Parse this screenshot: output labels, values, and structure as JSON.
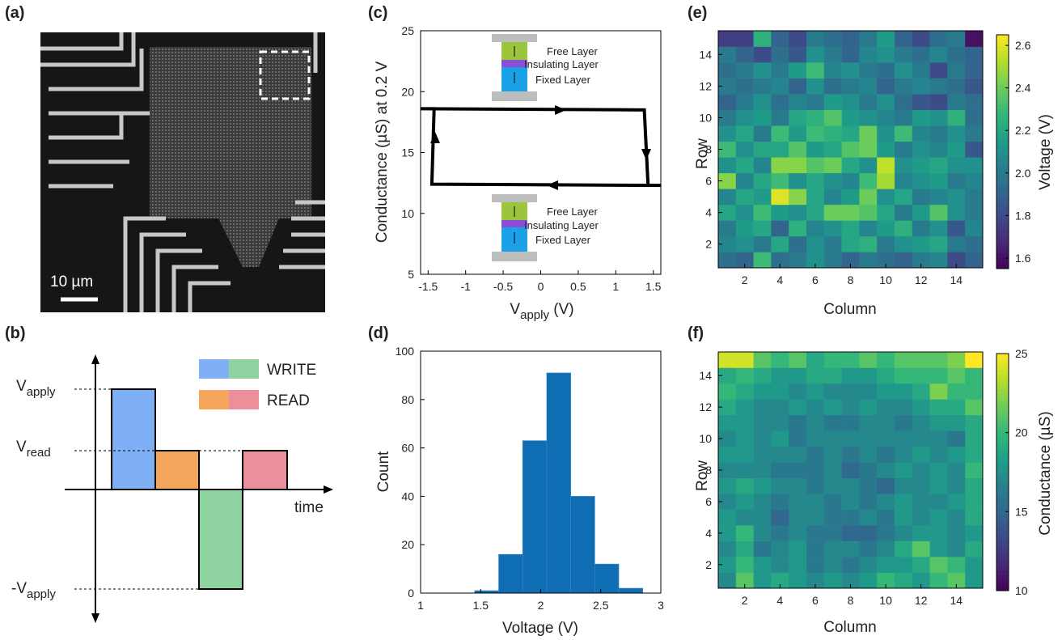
{
  "panel_labels": [
    "(a)",
    "(b)",
    "(c)",
    "(d)",
    "(e)",
    "(f)"
  ],
  "sem_image": {
    "scale_bar": "10 µm"
  },
  "pulse_diagram": {
    "v_apply": [
      "V",
      "apply"
    ],
    "v_read": [
      "V",
      "read"
    ],
    "neg_v_apply": [
      "-V",
      "apply"
    ],
    "x_label": "time",
    "legend": [
      "WRITE",
      "READ"
    ]
  },
  "chart_data": [
    {
      "type": "line",
      "x_label": [
        "V",
        "apply",
        " (V)"
      ],
      "y_label": "Conductance (µS) at 0.2 V",
      "x": [
        -1.6,
        1.38,
        1.43,
        1.6,
        -1.45,
        -1.42
      ],
      "values": [
        18.6,
        18.5,
        12.3,
        12.3,
        12.4,
        18.6
      ],
      "color": "#000000",
      "xlim": [
        -1.6,
        1.6
      ],
      "xticks": [
        -1.5,
        -1,
        -0.5,
        0,
        0.5,
        1,
        1.5
      ],
      "ylim": [
        5,
        25
      ],
      "yticks": [
        5,
        10,
        15,
        20,
        25
      ],
      "insets": [
        [
          "Free Layer",
          "Insulating Layer",
          "Fixed Layer"
        ],
        [
          "Free Layer",
          "Insulating Layer",
          "Fixed Layer"
        ]
      ]
    },
    {
      "type": "histogram",
      "x_label": "Voltage (V)",
      "y_label": "Count",
      "color": "#0f6db3",
      "bins": [
        1.45,
        1.65,
        1.85,
        2.05,
        2.25,
        2.45,
        2.65,
        2.85
      ],
      "values": [
        1,
        16,
        63,
        91,
        40,
        12,
        2
      ],
      "xlim": [
        1,
        3
      ],
      "xticks": [
        1,
        1.5,
        2,
        2.5,
        3
      ],
      "ylim": [
        0,
        100
      ],
      "yticks": [
        0,
        20,
        40,
        60,
        80,
        100
      ]
    },
    {
      "type": "heatmap",
      "x_label": "Column",
      "y_label": "Row",
      "colorbar_label": "Voltage (V)",
      "colormap": "viridis",
      "xlim": [
        0.5,
        15.5
      ],
      "xticks": [
        2,
        4,
        6,
        8,
        10,
        12,
        14
      ],
      "ylim": [
        0.5,
        15.5
      ],
      "yticks": [
        2,
        4,
        6,
        8,
        10,
        12,
        14
      ],
      "clim": [
        1.55,
        2.65
      ],
      "cticks": [
        1.6,
        1.8,
        {
          "value": 2,
          "label": "2.0"
        },
        2.2,
        2.4,
        2.6
      ],
      "z": [
        [
          1.95,
          1.9,
          2.3,
          1.95,
          2.0,
          2.1,
          2.0,
          1.9,
          2.0,
          1.95,
          1.9,
          2.0,
          2.05,
          1.8,
          1.9
        ],
        [
          2.05,
          2.1,
          2.0,
          2.2,
          1.95,
          2.1,
          2.0,
          2.2,
          2.25,
          2.0,
          2.1,
          2.15,
          2.2,
          2.0,
          1.95
        ],
        [
          2.0,
          2.15,
          2.2,
          1.9,
          2.25,
          2.05,
          2.1,
          2.2,
          2.05,
          2.15,
          2.25,
          2.0,
          2.1,
          1.85,
          2.05
        ],
        [
          2.2,
          2.1,
          2.3,
          2.15,
          2.1,
          2.2,
          2.4,
          2.4,
          2.35,
          2.2,
          2.0,
          2.15,
          2.35,
          2.1,
          2.0
        ],
        [
          2.05,
          2.2,
          2.15,
          2.6,
          2.45,
          2.2,
          2.05,
          2.15,
          2.4,
          2.1,
          2.2,
          2.0,
          2.05,
          2.1,
          2.0
        ],
        [
          2.45,
          2.05,
          2.2,
          2.3,
          2.1,
          2.2,
          2.1,
          2.05,
          2.3,
          2.5,
          2.05,
          2.1,
          2.15,
          2.0,
          2.05
        ],
        [
          2.1,
          2.2,
          2.05,
          2.45,
          2.45,
          2.35,
          2.4,
          2.2,
          2.1,
          2.55,
          2.1,
          2.15,
          2.2,
          2.1,
          2.1
        ],
        [
          2.3,
          2.1,
          2.2,
          2.2,
          2.35,
          2.15,
          2.2,
          2.35,
          2.4,
          2.15,
          2.0,
          2.1,
          2.05,
          2.15,
          1.85
        ],
        [
          2.1,
          2.2,
          2.0,
          2.3,
          2.15,
          2.3,
          2.25,
          2.2,
          2.4,
          2.1,
          2.3,
          2.05,
          2.0,
          2.1,
          2.0
        ],
        [
          2.0,
          2.1,
          2.15,
          2.0,
          2.2,
          2.25,
          2.35,
          2.15,
          2.1,
          2.05,
          2.0,
          2.15,
          2.1,
          2.25,
          1.95
        ],
        [
          1.9,
          2.0,
          2.1,
          1.95,
          2.05,
          2.0,
          2.15,
          2.1,
          2.0,
          2.1,
          1.95,
          1.85,
          1.8,
          2.0,
          1.95
        ],
        [
          2.0,
          1.95,
          2.0,
          2.05,
          1.9,
          2.1,
          1.95,
          2.0,
          2.05,
          1.9,
          2.0,
          2.05,
          2.0,
          1.95,
          1.85
        ],
        [
          1.95,
          2.0,
          2.1,
          2.0,
          2.15,
          2.3,
          2.05,
          2.1,
          2.0,
          1.95,
          2.1,
          2.0,
          1.8,
          2.0,
          1.9
        ],
        [
          2.0,
          1.9,
          1.8,
          1.95,
          1.85,
          2.1,
          2.0,
          1.9,
          2.05,
          2.1,
          2.0,
          1.95,
          2.05,
          1.95,
          1.9
        ],
        [
          1.75,
          1.75,
          2.25,
          1.9,
          1.8,
          2.0,
          1.95,
          1.9,
          2.0,
          2.15,
          1.9,
          1.8,
          1.95,
          2.0,
          1.6
        ]
      ]
    },
    {
      "type": "heatmap",
      "x_label": "Column",
      "y_label": "Row",
      "colorbar_label": "Conductance (µS)",
      "colormap": "viridis",
      "xlim": [
        0.5,
        15.5
      ],
      "xticks": [
        2,
        4,
        6,
        8,
        10,
        12,
        14
      ],
      "ylim": [
        0.5,
        15.5
      ],
      "yticks": [
        2,
        4,
        6,
        8,
        10,
        12,
        14
      ],
      "clim": [
        10,
        25
      ],
      "cticks": [
        10,
        15,
        20,
        25
      ],
      "z": [
        [
          17,
          21,
          18,
          19,
          18,
          17,
          18,
          17,
          18,
          20,
          19,
          18,
          20,
          21,
          18
        ],
        [
          18,
          20,
          18,
          17,
          18,
          16,
          17,
          16,
          17,
          18,
          18,
          19,
          21,
          20,
          18
        ],
        [
          17,
          19,
          16,
          17,
          18,
          16,
          17,
          17,
          16,
          17,
          19,
          21,
          18,
          17,
          19
        ],
        [
          18,
          20,
          17,
          16,
          17,
          16,
          16,
          15,
          15,
          16,
          17,
          18,
          18,
          17,
          18
        ],
        [
          18,
          17,
          17,
          15,
          17,
          17,
          16,
          16,
          17,
          16,
          18,
          17,
          18,
          17,
          19
        ],
        [
          17,
          18,
          17,
          16,
          17,
          17,
          16,
          17,
          16,
          17,
          18,
          17,
          17,
          18,
          19
        ],
        [
          18,
          19,
          18,
          17,
          17,
          16,
          17,
          17,
          16,
          15,
          17,
          17,
          18,
          17,
          19
        ],
        [
          17,
          17,
          17,
          16,
          16,
          16,
          17,
          15,
          16,
          17,
          18,
          17,
          18,
          17,
          20
        ],
        [
          18,
          18,
          17,
          17,
          17,
          16,
          17,
          16,
          17,
          16,
          17,
          18,
          17,
          18,
          19
        ],
        [
          17,
          18,
          17,
          18,
          16,
          17,
          17,
          17,
          17,
          17,
          17,
          17,
          17,
          16,
          19
        ],
        [
          18,
          18,
          17,
          17,
          16,
          17,
          16,
          16,
          17,
          17,
          16,
          17,
          18,
          18,
          19
        ],
        [
          19,
          18,
          17,
          17,
          18,
          17,
          18,
          17,
          18,
          17,
          17,
          18,
          19,
          19,
          21
        ],
        [
          20,
          19,
          18,
          18,
          17,
          18,
          17,
          17,
          17,
          18,
          18,
          19,
          22,
          20,
          20
        ],
        [
          19,
          20,
          19,
          18,
          18,
          19,
          19,
          18,
          18,
          19,
          20,
          20,
          20,
          21,
          20
        ],
        [
          24,
          24,
          21,
          20,
          21,
          19,
          20,
          20,
          21,
          20,
          21,
          21,
          21,
          22,
          25
        ]
      ]
    }
  ]
}
